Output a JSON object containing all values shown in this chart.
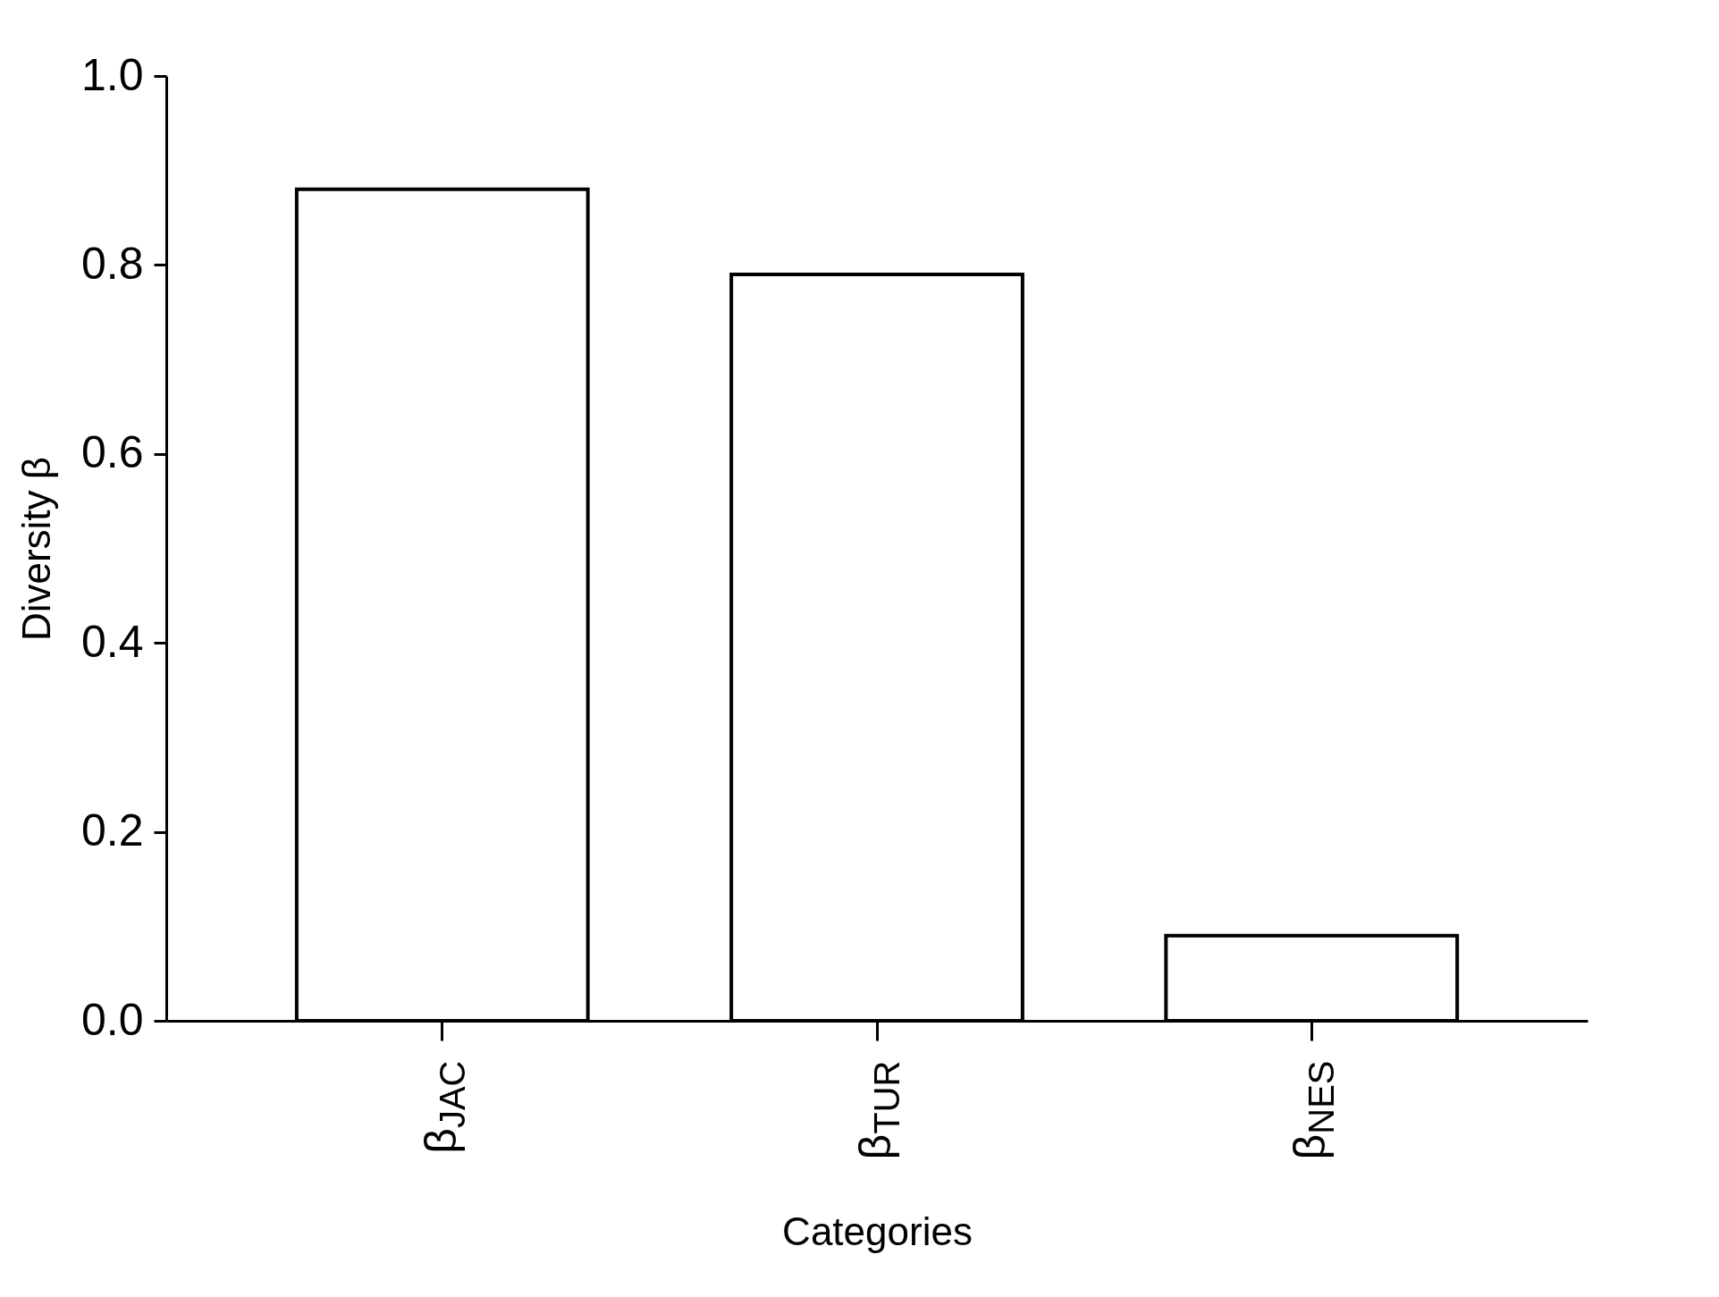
{
  "chart_data": {
    "type": "bar",
    "xlabel": "Categories",
    "ylabel": "Diversity β",
    "categories": [
      "β$_{JAC}$",
      "β$_{TUR}$",
      "β$_{NES}$"
    ],
    "values": [
      0.88,
      0.79,
      0.09
    ],
    "color": "#ffffff",
    "ylim": [
      0,
      1
    ],
    "yticks": [
      {
        "value": 0,
        "label": "0.0"
      },
      {
        "value": 0.2,
        "label": "0.2"
      },
      {
        "value": 0.4,
        "label": "0.4"
      },
      {
        "value": 0.6,
        "label": "0.6"
      },
      {
        "value": 0.8,
        "label": "0.8"
      },
      {
        "value": 1,
        "label": "1.0"
      }
    ],
    "grid": false
  }
}
